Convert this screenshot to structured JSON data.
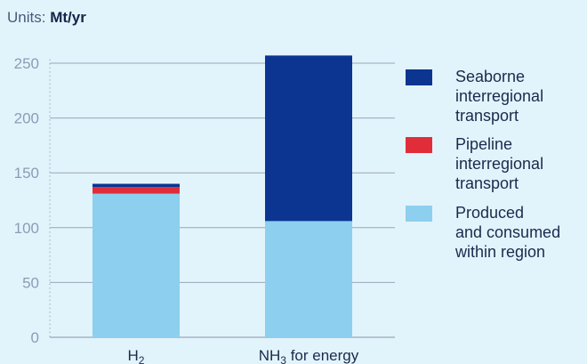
{
  "units": {
    "label": "Units:",
    "value": "Mt/yr"
  },
  "colors": {
    "background": "#e2f4fb",
    "grid": "#98a6bd",
    "seaborne": "#0b3591",
    "pipeline": "#e12d3a",
    "produced": "#8dcfee"
  },
  "chart_data": {
    "type": "bar",
    "stacked": true,
    "categories": [
      {
        "base": "H",
        "sub": "2",
        "suffix": ""
      },
      {
        "base": "NH",
        "sub": "3",
        "suffix": " for energy"
      }
    ],
    "series": [
      {
        "name": "Produced and consumed within region",
        "color": "#8dcfee",
        "values": [
          131,
          106
        ]
      },
      {
        "name": "Pipeline interregional transport",
        "color": "#e12d3a",
        "values": [
          6,
          0
        ]
      },
      {
        "name": "Seaborne interregional transport",
        "color": "#0b3591",
        "values": [
          3,
          151
        ]
      }
    ],
    "ylim": [
      0,
      260
    ],
    "yticks": [
      0,
      50,
      100,
      150,
      200,
      250
    ],
    "grid": true,
    "legend_position": "right",
    "legend_order": [
      {
        "name": "Seaborne interregional transport",
        "lines": [
          "Seaborne",
          "interregional",
          "transport"
        ],
        "color": "#0b3591"
      },
      {
        "name": "Pipeline interregional transport",
        "lines": [
          "Pipeline",
          "interregional",
          "transport"
        ],
        "color": "#e12d3a"
      },
      {
        "name": "Produced and consumed within region",
        "lines": [
          "Produced",
          "and consumed",
          "within region"
        ],
        "color": "#8dcfee"
      }
    ]
  }
}
